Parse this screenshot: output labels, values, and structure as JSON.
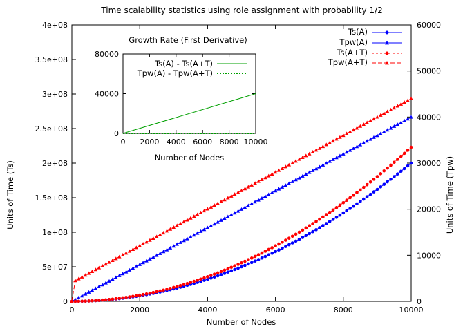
{
  "chart_data": {
    "type": "line",
    "title": "Time scalability statistics using role assignment with probability 1/2",
    "xlabel": "Number of Nodes",
    "ylabel": "Units of Time (Ts)",
    "y2label": "Units of Time (Tpw)",
    "xlim": [
      0,
      10000
    ],
    "ylim": [
      0,
      400000000
    ],
    "y2lim": [
      0,
      60000
    ],
    "x_ticks": [
      "0",
      "2000",
      "4000",
      "6000",
      "8000",
      "10000"
    ],
    "y_ticks": [
      "0",
      "5e+07",
      "1e+08",
      "1.5e+08",
      "2e+08",
      "2.5e+08",
      "3e+08",
      "3.5e+08",
      "4e+08"
    ],
    "y2_ticks": [
      "0",
      "10000",
      "20000",
      "30000",
      "40000",
      "50000",
      "60000"
    ],
    "grid": false,
    "legend_position": "top-right",
    "series": [
      {
        "name": "Ts(A)",
        "axis": "left",
        "color": "#0000ff",
        "marker": "circle",
        "x_end": 10000,
        "y_end": 200000000,
        "curve": "quadratic"
      },
      {
        "name": "Tpw(A)",
        "axis": "right",
        "color": "#0000ff",
        "marker": "triangle",
        "x_end": 10000,
        "y_end": 40000,
        "curve": "linear"
      },
      {
        "name": "Ts(A+T)",
        "axis": "left",
        "color": "#ff0000",
        "marker": "circle",
        "x_end": 10000,
        "y_end": 223000000,
        "curve": "quadratic"
      },
      {
        "name": "Tpw(A+T)",
        "axis": "right",
        "color": "#ff0000",
        "marker": "triangle",
        "x_start": 100,
        "y_start": 4500,
        "x_end": 10000,
        "y_end": 44000,
        "curve": "linear"
      }
    ],
    "inset": {
      "title": "Growth Rate (First Derivative)",
      "xlabel": "Number of Nodes",
      "xlim": [
        0,
        10000
      ],
      "ylim": [
        0,
        80000
      ],
      "x_ticks": [
        "0",
        "2000",
        "4000",
        "6000",
        "8000",
        "10000"
      ],
      "y_ticks": [
        "0",
        "40000",
        "80000"
      ],
      "series": [
        {
          "name": "Ts(A) - Ts(A+T)",
          "color": "#00a000",
          "style": "solid",
          "x": [
            0,
            10000
          ],
          "y": [
            0,
            40000
          ]
        },
        {
          "name": "Tpw(A) - Tpw(A+T)",
          "color": "#00a000",
          "style": "dotted",
          "x": [
            0,
            10000
          ],
          "y": [
            0,
            0
          ]
        }
      ]
    }
  }
}
